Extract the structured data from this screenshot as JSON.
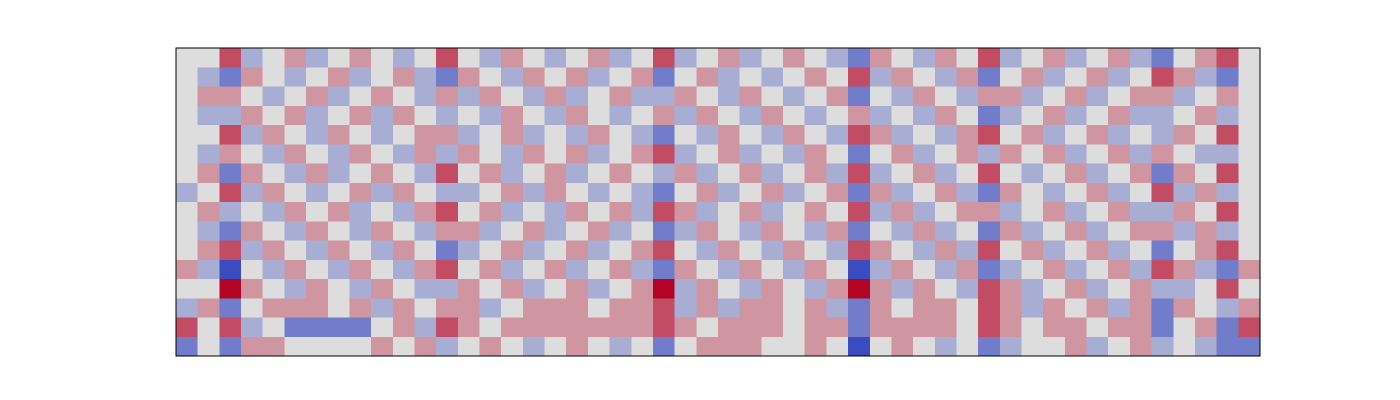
{
  "chart_data": {
    "type": "heatmap",
    "zlim": [
      -3,
      3
    ],
    "colormap": [
      "#3b4cc0",
      "#dddddd",
      "#b40426"
    ],
    "z": [
      [
        0,
        0,
        2,
        -1,
        0,
        1,
        -1,
        0,
        1,
        0,
        -1,
        0,
        2,
        0,
        -1,
        1,
        0,
        -1,
        0,
        1,
        -1,
        0,
        2,
        -1,
        0,
        1,
        -1,
        0,
        1,
        0,
        -1,
        -2,
        1,
        0,
        -1,
        1,
        0,
        2,
        -1,
        0,
        1,
        -1,
        0,
        1,
        -1,
        -2,
        0,
        1,
        2,
        0
      ],
      [
        0,
        -1,
        -2,
        1,
        0,
        -1,
        0,
        1,
        -1,
        0,
        1,
        -1,
        -2,
        1,
        0,
        -1,
        1,
        0,
        1,
        -1,
        0,
        1,
        -2,
        0,
        1,
        -1,
        0,
        -1,
        0,
        1,
        0,
        2,
        -1,
        1,
        0,
        -1,
        1,
        -2,
        0,
        1,
        -1,
        0,
        1,
        -1,
        0,
        2,
        1,
        -1,
        -2,
        0
      ],
      [
        0,
        1,
        1,
        0,
        -1,
        0,
        1,
        -1,
        0,
        1,
        0,
        -1,
        1,
        -1,
        1,
        0,
        -1,
        1,
        -1,
        0,
        1,
        -1,
        -1,
        1,
        0,
        -1,
        1,
        0,
        -1,
        0,
        1,
        -2,
        0,
        -1,
        1,
        0,
        -1,
        1,
        1,
        -1,
        0,
        1,
        -1,
        0,
        1,
        1,
        -1,
        0,
        1,
        0
      ],
      [
        0,
        -1,
        -1,
        1,
        0,
        1,
        -1,
        0,
        1,
        -1,
        1,
        0,
        -1,
        0,
        -1,
        1,
        0,
        -1,
        1,
        0,
        -1,
        0,
        1,
        -1,
        1,
        0,
        -1,
        1,
        0,
        -1,
        0,
        1,
        -1,
        0,
        -1,
        1,
        0,
        -2,
        -1,
        0,
        1,
        -1,
        0,
        1,
        -1,
        -1,
        0,
        1,
        -1,
        0
      ],
      [
        0,
        0,
        2,
        -1,
        1,
        0,
        -1,
        1,
        0,
        -1,
        0,
        1,
        1,
        -1,
        0,
        1,
        -1,
        0,
        -1,
        1,
        0,
        -1,
        -2,
        0,
        -1,
        1,
        0,
        -1,
        1,
        0,
        -1,
        2,
        1,
        -1,
        0,
        -1,
        1,
        2,
        0,
        1,
        -1,
        0,
        1,
        -1,
        0,
        -1,
        1,
        0,
        2,
        0
      ],
      [
        0,
        -1,
        1,
        0,
        -1,
        1,
        0,
        -1,
        1,
        0,
        -1,
        1,
        -1,
        1,
        0,
        -1,
        1,
        0,
        1,
        -1,
        0,
        1,
        2,
        -1,
        0,
        1,
        -1,
        0,
        -1,
        1,
        0,
        -2,
        0,
        1,
        -1,
        0,
        1,
        -1,
        1,
        0,
        1,
        -1,
        0,
        1,
        -1,
        1,
        0,
        -1,
        -1,
        0
      ],
      [
        0,
        1,
        -2,
        1,
        0,
        -1,
        1,
        -1,
        0,
        1,
        0,
        -1,
        2,
        0,
        1,
        -1,
        0,
        1,
        -1,
        0,
        1,
        0,
        -1,
        1,
        -1,
        0,
        1,
        -1,
        0,
        1,
        -1,
        2,
        -1,
        0,
        1,
        -1,
        0,
        2,
        0,
        -1,
        0,
        1,
        -1,
        0,
        1,
        -2,
        1,
        0,
        2,
        0
      ],
      [
        -1,
        0,
        2,
        -1,
        1,
        0,
        -1,
        0,
        1,
        -1,
        1,
        0,
        -1,
        -1,
        0,
        1,
        -1,
        1,
        0,
        -1,
        0,
        -1,
        -2,
        0,
        1,
        -1,
        0,
        1,
        -1,
        0,
        1,
        -2,
        1,
        -1,
        0,
        1,
        -1,
        -2,
        1,
        0,
        -1,
        0,
        1,
        -1,
        0,
        2,
        -1,
        1,
        -1,
        0
      ],
      [
        0,
        1,
        -1,
        0,
        -1,
        1,
        0,
        1,
        -1,
        0,
        -1,
        1,
        2,
        0,
        1,
        -1,
        0,
        -1,
        1,
        0,
        1,
        -1,
        2,
        1,
        -1,
        0,
        1,
        -1,
        0,
        1,
        0,
        2,
        -1,
        1,
        -1,
        0,
        1,
        1,
        -1,
        0,
        1,
        -1,
        0,
        1,
        -1,
        -1,
        1,
        0,
        2,
        0
      ],
      [
        0,
        -1,
        -2,
        1,
        0,
        -1,
        1,
        0,
        -1,
        1,
        0,
        -1,
        1,
        1,
        -1,
        0,
        1,
        -1,
        0,
        1,
        -1,
        0,
        -2,
        -1,
        1,
        0,
        -1,
        1,
        0,
        -1,
        1,
        -2,
        0,
        -1,
        1,
        -1,
        0,
        -2,
        1,
        -1,
        0,
        1,
        -1,
        0,
        1,
        1,
        -1,
        1,
        -1,
        0
      ],
      [
        0,
        1,
        2,
        -1,
        1,
        0,
        -1,
        1,
        0,
        -1,
        1,
        0,
        -2,
        -1,
        0,
        1,
        -1,
        0,
        1,
        -1,
        0,
        1,
        2,
        0,
        -1,
        1,
        0,
        -1,
        1,
        0,
        -1,
        2,
        1,
        0,
        -1,
        1,
        -1,
        2,
        0,
        1,
        -1,
        0,
        1,
        -1,
        0,
        -2,
        0,
        1,
        2,
        0
      ],
      [
        1,
        -1,
        -3,
        0,
        -1,
        1,
        0,
        -1,
        1,
        0,
        -1,
        1,
        2,
        0,
        1,
        -1,
        0,
        1,
        -1,
        0,
        1,
        -1,
        -2,
        1,
        0,
        -1,
        1,
        0,
        -1,
        1,
        0,
        -3,
        -1,
        1,
        0,
        -1,
        1,
        -2,
        -1,
        0,
        1,
        -1,
        0,
        1,
        -1,
        2,
        1,
        -1,
        -2,
        1
      ],
      [
        0,
        0,
        3,
        1,
        0,
        -1,
        1,
        0,
        -1,
        1,
        0,
        -1,
        -1,
        1,
        0,
        1,
        -1,
        0,
        1,
        -1,
        0,
        1,
        3,
        -1,
        1,
        0,
        -1,
        1,
        0,
        -1,
        1,
        3,
        1,
        -1,
        1,
        0,
        -1,
        2,
        1,
        -1,
        0,
        1,
        -1,
        0,
        1,
        -1,
        -1,
        0,
        2,
        0
      ],
      [
        -1,
        1,
        -2,
        0,
        1,
        1,
        1,
        0,
        1,
        -1,
        1,
        0,
        1,
        1,
        -1,
        0,
        1,
        1,
        1,
        0,
        1,
        1,
        2,
        -1,
        1,
        -1,
        1,
        1,
        0,
        1,
        -1,
        -2,
        1,
        0,
        1,
        1,
        0,
        2,
        1,
        -1,
        1,
        0,
        1,
        -1,
        1,
        -2,
        1,
        0,
        -1,
        1
      ],
      [
        2,
        0,
        2,
        -1,
        0,
        -2,
        -2,
        -2,
        -2,
        0,
        1,
        -1,
        2,
        1,
        0,
        1,
        1,
        1,
        1,
        1,
        1,
        1,
        2,
        1,
        0,
        1,
        1,
        1,
        0,
        1,
        1,
        -2,
        1,
        1,
        1,
        1,
        0,
        2,
        1,
        0,
        1,
        1,
        0,
        1,
        1,
        -2,
        0,
        1,
        -2,
        2
      ],
      [
        -2,
        0,
        -2,
        1,
        1,
        0,
        0,
        0,
        0,
        1,
        0,
        1,
        -1,
        0,
        1,
        0,
        -1,
        0,
        1,
        0,
        -1,
        0,
        -2,
        0,
        1,
        1,
        1,
        0,
        0,
        1,
        0,
        -3,
        0,
        1,
        0,
        -1,
        0,
        -2,
        -1,
        0,
        0,
        1,
        -1,
        0,
        1,
        -1,
        0,
        -1,
        -2,
        -2
      ]
    ]
  }
}
